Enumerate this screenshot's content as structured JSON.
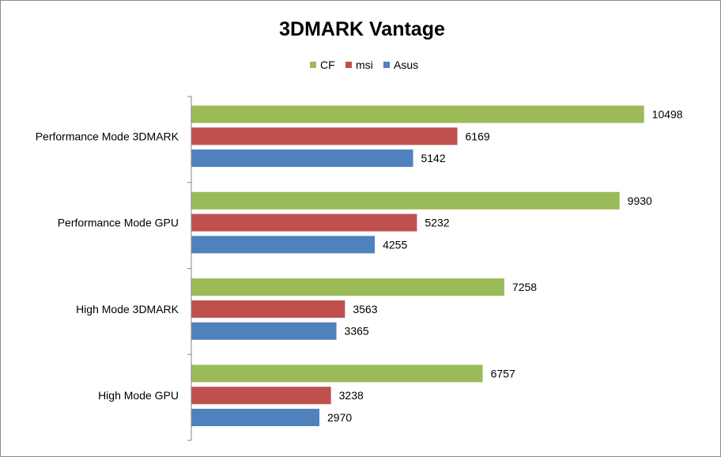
{
  "chart_data": {
    "type": "bar",
    "orientation": "horizontal",
    "title": "3DMARK Vantage",
    "xlabel": "",
    "ylabel": "",
    "xlim": [
      0,
      12000
    ],
    "grid": false,
    "legend_position": "top",
    "categories": [
      "Performance Mode 3DMARK",
      "Performance Mode GPU",
      "High Mode 3DMARK",
      "High Mode GPU"
    ],
    "series": [
      {
        "name": "CF",
        "color": "#9BBB59",
        "values": [
          10498,
          9930,
          7258,
          6757
        ]
      },
      {
        "name": "msi",
        "color": "#C0504D",
        "values": [
          6169,
          5232,
          3563,
          3238
        ]
      },
      {
        "name": "Asus",
        "color": "#4F81BD",
        "values": [
          5142,
          4255,
          3365,
          2970
        ]
      }
    ]
  }
}
